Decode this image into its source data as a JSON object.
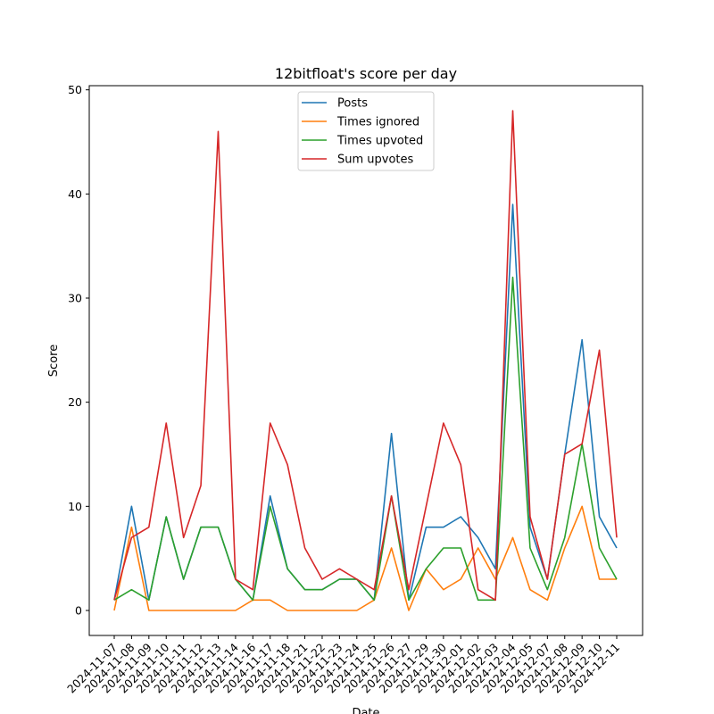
{
  "chart_data": {
    "type": "line",
    "title": "12bitfloat's score per day",
    "xlabel": "Date",
    "ylabel": "Score",
    "ylim": [
      -2.4,
      50.4
    ],
    "yticks": [
      0,
      10,
      20,
      30,
      40,
      50
    ],
    "grid": false,
    "legend_position": "top-center",
    "x": [
      "2024-11-07",
      "2024-11-08",
      "2024-11-09",
      "2024-11-10",
      "2024-11-11",
      "2024-11-12",
      "2024-11-13",
      "2024-11-14",
      "2024-11-16",
      "2024-11-17",
      "2024-11-18",
      "2024-11-21",
      "2024-11-22",
      "2024-11-23",
      "2024-11-24",
      "2024-11-25",
      "2024-11-26",
      "2024-11-27",
      "2024-11-29",
      "2024-11-30",
      "2024-12-01",
      "2024-12-02",
      "2024-12-03",
      "2024-12-04",
      "2024-12-05",
      "2024-12-07",
      "2024-12-08",
      "2024-12-09",
      "2024-12-10",
      "2024-12-11"
    ],
    "series": [
      {
        "name": "Posts",
        "color": "#1f77b4",
        "values": [
          1,
          10,
          1,
          9,
          3,
          8,
          8,
          3,
          1,
          11,
          4,
          2,
          2,
          3,
          3,
          1,
          17,
          1,
          8,
          8,
          9,
          7,
          4,
          39,
          8,
          3,
          15,
          26,
          9,
          6
        ]
      },
      {
        "name": "Times ignored",
        "color": "#ff7f0e",
        "values": [
          0,
          8,
          0,
          0,
          0,
          0,
          0,
          0,
          1,
          1,
          0,
          0,
          0,
          0,
          0,
          1,
          6,
          0,
          4,
          2,
          3,
          6,
          3,
          7,
          2,
          1,
          6,
          10,
          3,
          3
        ]
      },
      {
        "name": "Times upvoted",
        "color": "#2ca02c",
        "values": [
          1,
          2,
          1,
          9,
          3,
          8,
          8,
          3,
          1,
          10,
          4,
          2,
          2,
          3,
          3,
          1,
          11,
          1,
          4,
          6,
          6,
          1,
          1,
          32,
          6,
          2,
          7,
          16,
          6,
          3
        ]
      },
      {
        "name": "Sum upvotes",
        "color": "#d62728",
        "values": [
          1,
          7,
          8,
          18,
          7,
          12,
          46,
          3,
          2,
          18,
          14,
          6,
          3,
          4,
          3,
          2,
          11,
          2,
          10,
          18,
          14,
          2,
          1,
          48,
          9,
          3,
          15,
          16,
          25,
          7
        ]
      }
    ]
  }
}
